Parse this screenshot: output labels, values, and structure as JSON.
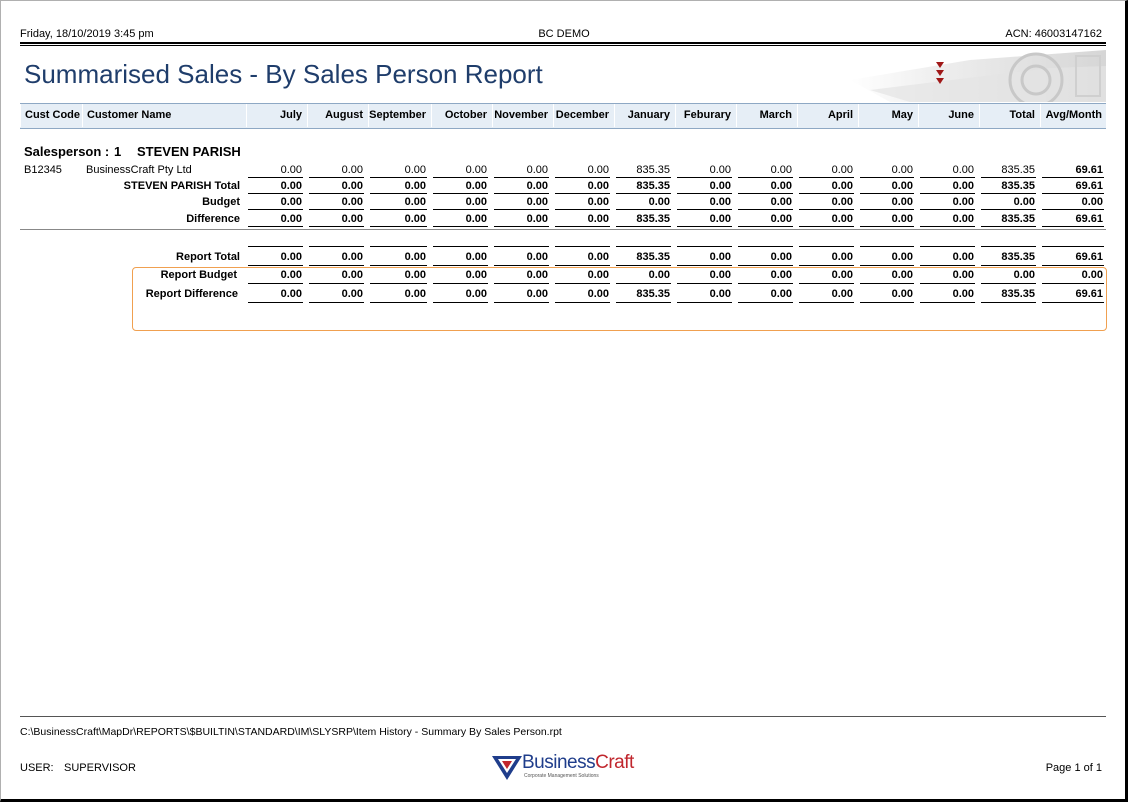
{
  "header": {
    "datetime": "Friday, 18/10/2019  3:45 pm",
    "company": "BC DEMO",
    "acn": "ACN: 46003147162"
  },
  "title": "Summarised Sales - By Sales Person Report",
  "columns": {
    "cust_code": "Cust Code",
    "customer_name": "Customer Name",
    "months": [
      "July",
      "August",
      "September",
      "October",
      "November",
      "December",
      "January",
      "Feburary",
      "March",
      "April",
      "May",
      "June",
      "Total",
      "Avg/Month"
    ]
  },
  "salesperson": {
    "label": "Salesperson :",
    "number": "1",
    "name": "STEVEN PARISH"
  },
  "rows": [
    {
      "code": "B12345",
      "name": "BusinessCraft Pty Ltd",
      "label": "",
      "bold": false,
      "values": [
        "0.00",
        "0.00",
        "0.00",
        "0.00",
        "0.00",
        "0.00",
        "835.35",
        "0.00",
        "0.00",
        "0.00",
        "0.00",
        "0.00",
        "835.35",
        "69.61"
      ]
    },
    {
      "code": "",
      "name": "",
      "label": "STEVEN PARISH Total",
      "bold": true,
      "values": [
        "0.00",
        "0.00",
        "0.00",
        "0.00",
        "0.00",
        "0.00",
        "835.35",
        "0.00",
        "0.00",
        "0.00",
        "0.00",
        "0.00",
        "835.35",
        "69.61"
      ]
    },
    {
      "code": "",
      "name": "",
      "label": "Budget",
      "bold": true,
      "values": [
        "0.00",
        "0.00",
        "0.00",
        "0.00",
        "0.00",
        "0.00",
        "0.00",
        "0.00",
        "0.00",
        "0.00",
        "0.00",
        "0.00",
        "0.00",
        "0.00"
      ]
    },
    {
      "code": "",
      "name": "",
      "label": "Difference",
      "bold": true,
      "values": [
        "0.00",
        "0.00",
        "0.00",
        "0.00",
        "0.00",
        "0.00",
        "835.35",
        "0.00",
        "0.00",
        "0.00",
        "0.00",
        "0.00",
        "835.35",
        "69.61"
      ]
    }
  ],
  "report_rows": [
    {
      "label": "Report Total",
      "values": [
        "0.00",
        "0.00",
        "0.00",
        "0.00",
        "0.00",
        "0.00",
        "835.35",
        "0.00",
        "0.00",
        "0.00",
        "0.00",
        "0.00",
        "835.35",
        "69.61"
      ]
    },
    {
      "label": "Report Budget",
      "values": [
        "0.00",
        "0.00",
        "0.00",
        "0.00",
        "0.00",
        "0.00",
        "0.00",
        "0.00",
        "0.00",
        "0.00",
        "0.00",
        "0.00",
        "0.00",
        "0.00"
      ]
    },
    {
      "label": "Report Difference",
      "values": [
        "0.00",
        "0.00",
        "0.00",
        "0.00",
        "0.00",
        "0.00",
        "835.35",
        "0.00",
        "0.00",
        "0.00",
        "0.00",
        "0.00",
        "835.35",
        "69.61"
      ]
    }
  ],
  "footer": {
    "path": "C:\\BusinessCraft\\MapDr\\REPORTS\\$BUILTIN\\STANDARD\\IM\\SLYSRP\\Item History - Summary By Sales Person.rpt",
    "user_label": "USER:",
    "user": "SUPERVISOR",
    "page": "Page 1 of 1",
    "logo_text_1": "Business",
    "logo_text_2": "Craft",
    "logo_tagline": "Corporate Management Solutions"
  },
  "colors": {
    "title": "#1f3d6b",
    "header_band": "#e6eef6",
    "highlight_border": "#f0a050",
    "logo_blue": "#1f3d8b",
    "logo_red": "#c0262d"
  }
}
